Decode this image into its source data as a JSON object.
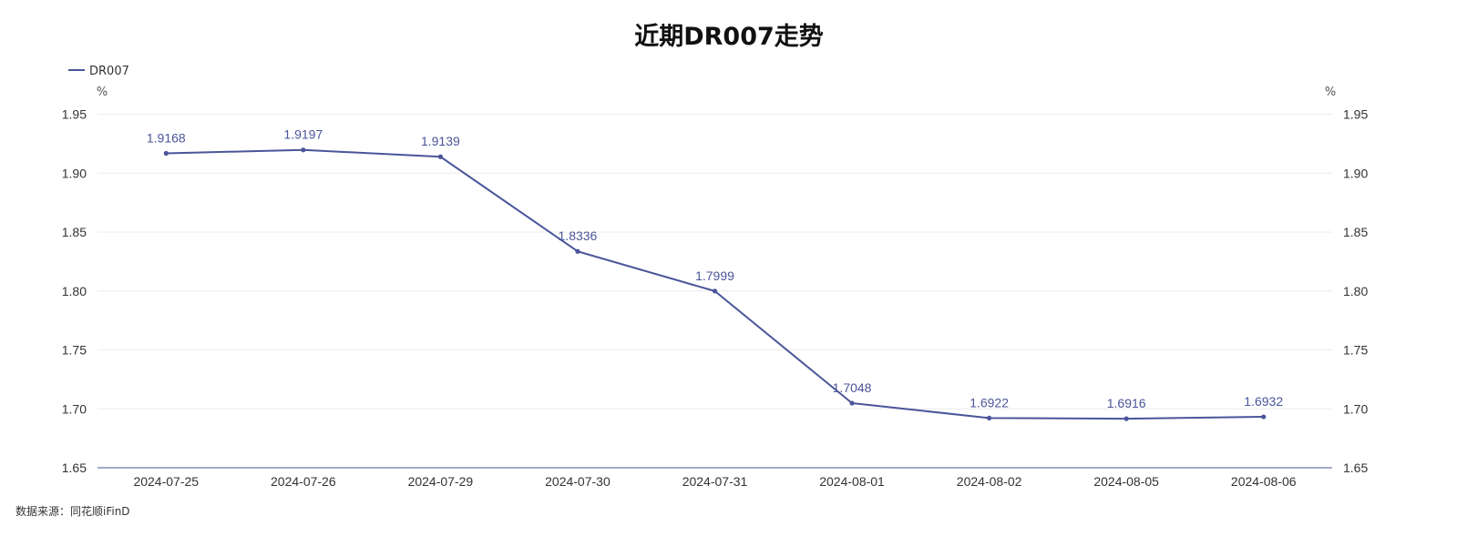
{
  "chart_data": {
    "type": "line",
    "title": "近期DR007走势",
    "categories": [
      "2024-07-25",
      "2024-07-26",
      "2024-07-29",
      "2024-07-30",
      "2024-07-31",
      "2024-08-01",
      "2024-08-02",
      "2024-08-05",
      "2024-08-06"
    ],
    "series": [
      {
        "name": "DR007",
        "color": "#4a5599",
        "values": [
          1.9168,
          1.9197,
          1.9139,
          1.8336,
          1.7999,
          1.7048,
          1.6922,
          1.6916,
          1.6932
        ],
        "labels": [
          "1.9168",
          "1.9197",
          "1.9139",
          "1.8336",
          "1.7999",
          "1.7048",
          "1.6922",
          "1.6916",
          "1.6932"
        ]
      }
    ],
    "y_left_unit": "%",
    "y_right_unit": "%",
    "ylim": [
      1.65,
      1.95
    ],
    "yticks": [
      "1.65",
      "1.70",
      "1.75",
      "1.80",
      "1.85",
      "1.90",
      "1.95"
    ],
    "legend_position": "top-left",
    "grid": true
  },
  "source": "数据来源：同花顺iFinD",
  "colors": {
    "series": "#4a5599",
    "axis": "#6e7aa6",
    "grid": "#ececec"
  }
}
